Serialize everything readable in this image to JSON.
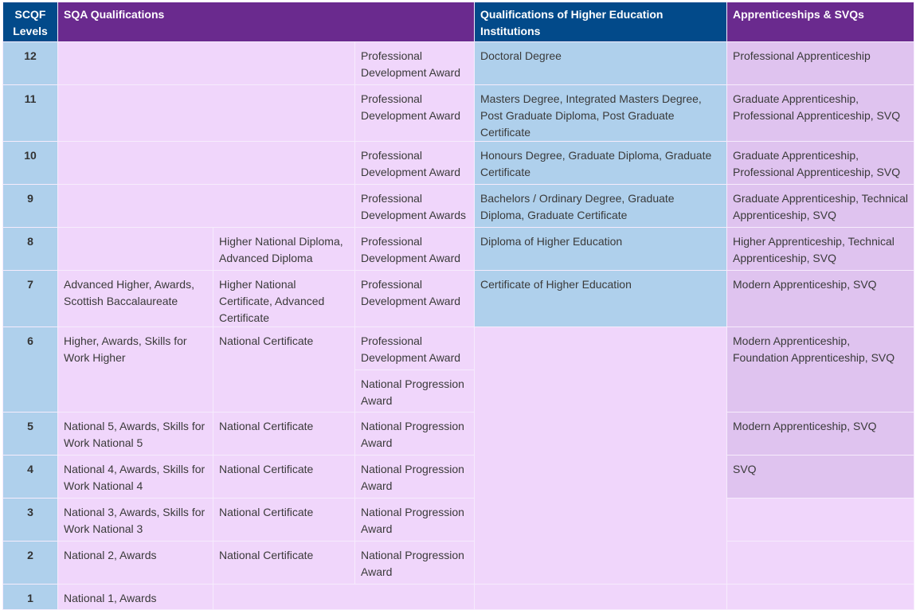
{
  "headers": {
    "levels": "SCQF Levels",
    "sqa": "SQA Qualifications",
    "hei": "Qualifications of Higher Education Institutions",
    "app": "Apprenticeships & SVQs"
  },
  "rows": {
    "r12": {
      "level": "12",
      "pda": "Professional Development Award",
      "hei": "Doctoral Degree",
      "app": "Professional Apprenticeship"
    },
    "r11": {
      "level": "11",
      "pda": "Professional Development Award",
      "hei": "Masters Degree, Integrated Masters Degree, Post Graduate Diploma, Post Graduate Certificate",
      "app": "Graduate Apprenticeship, Professional Apprenticeship, SVQ"
    },
    "r10": {
      "level": "10",
      "pda": "Professional Development Award",
      "hei": "Honours Degree, Graduate Diploma, Graduate Certificate",
      "app": "Graduate Apprenticeship, Professional Apprenticeship, SVQ"
    },
    "r9": {
      "level": "9",
      "pda": "Professional Development Awards",
      "hei": "Bachelors / Ordinary Degree, Graduate Diploma, Graduate Certificate",
      "app": "Graduate Apprenticeship, Technical Apprenticeship, SVQ"
    },
    "r8": {
      "level": "8",
      "hn": "Higher National Diploma, Advanced Diploma",
      "pda": "Professional Development Award",
      "hei": "Diploma of Higher Education",
      "app": "Higher Apprenticeship, Technical Apprenticeship, SVQ"
    },
    "r7": {
      "level": "7",
      "sqa": "Advanced Higher, Awards, Scottish Baccalaureate",
      "hn": "Higher National Certificate, Advanced Certificate",
      "pda": "Professional Development Award",
      "hei": "Certificate of Higher Education",
      "app": "Modern Apprenticeship, SVQ"
    },
    "r6": {
      "level": "6",
      "sqa": "Higher, Awards, Skills for Work Higher",
      "hn": "National Certificate",
      "pda": "Professional Development Award",
      "npa": "National Progression Award",
      "app": "Modern Apprenticeship, Foundation Apprenticeship, SVQ"
    },
    "r5": {
      "level": "5",
      "sqa": "National 5, Awards, Skills for Work National 5",
      "hn": "National Certificate",
      "npa": "National Progression Award",
      "app": "Modern Apprenticeship, SVQ"
    },
    "r4": {
      "level": "4",
      "sqa": "National 4, Awards, Skills for Work National 4",
      "hn": "National Certificate",
      "npa": "National Progression Award",
      "app": "SVQ"
    },
    "r3": {
      "level": "3",
      "sqa": "National 3, Awards, Skills for Work National 3",
      "hn": "National Certificate",
      "npa": "National Progression Award"
    },
    "r2": {
      "level": "2",
      "sqa": "National 2, Awards",
      "hn": "National Certificate",
      "npa": "National Progression Award"
    },
    "r1": {
      "level": "1",
      "sqa": "National 1, Awards"
    }
  },
  "colors": {
    "dark_blue": "#024a8a",
    "purple": "#6a2a8e",
    "light_blue": "#afd0ec",
    "pink": "#f0d6fb",
    "lilac": "#dfc3ef"
  }
}
